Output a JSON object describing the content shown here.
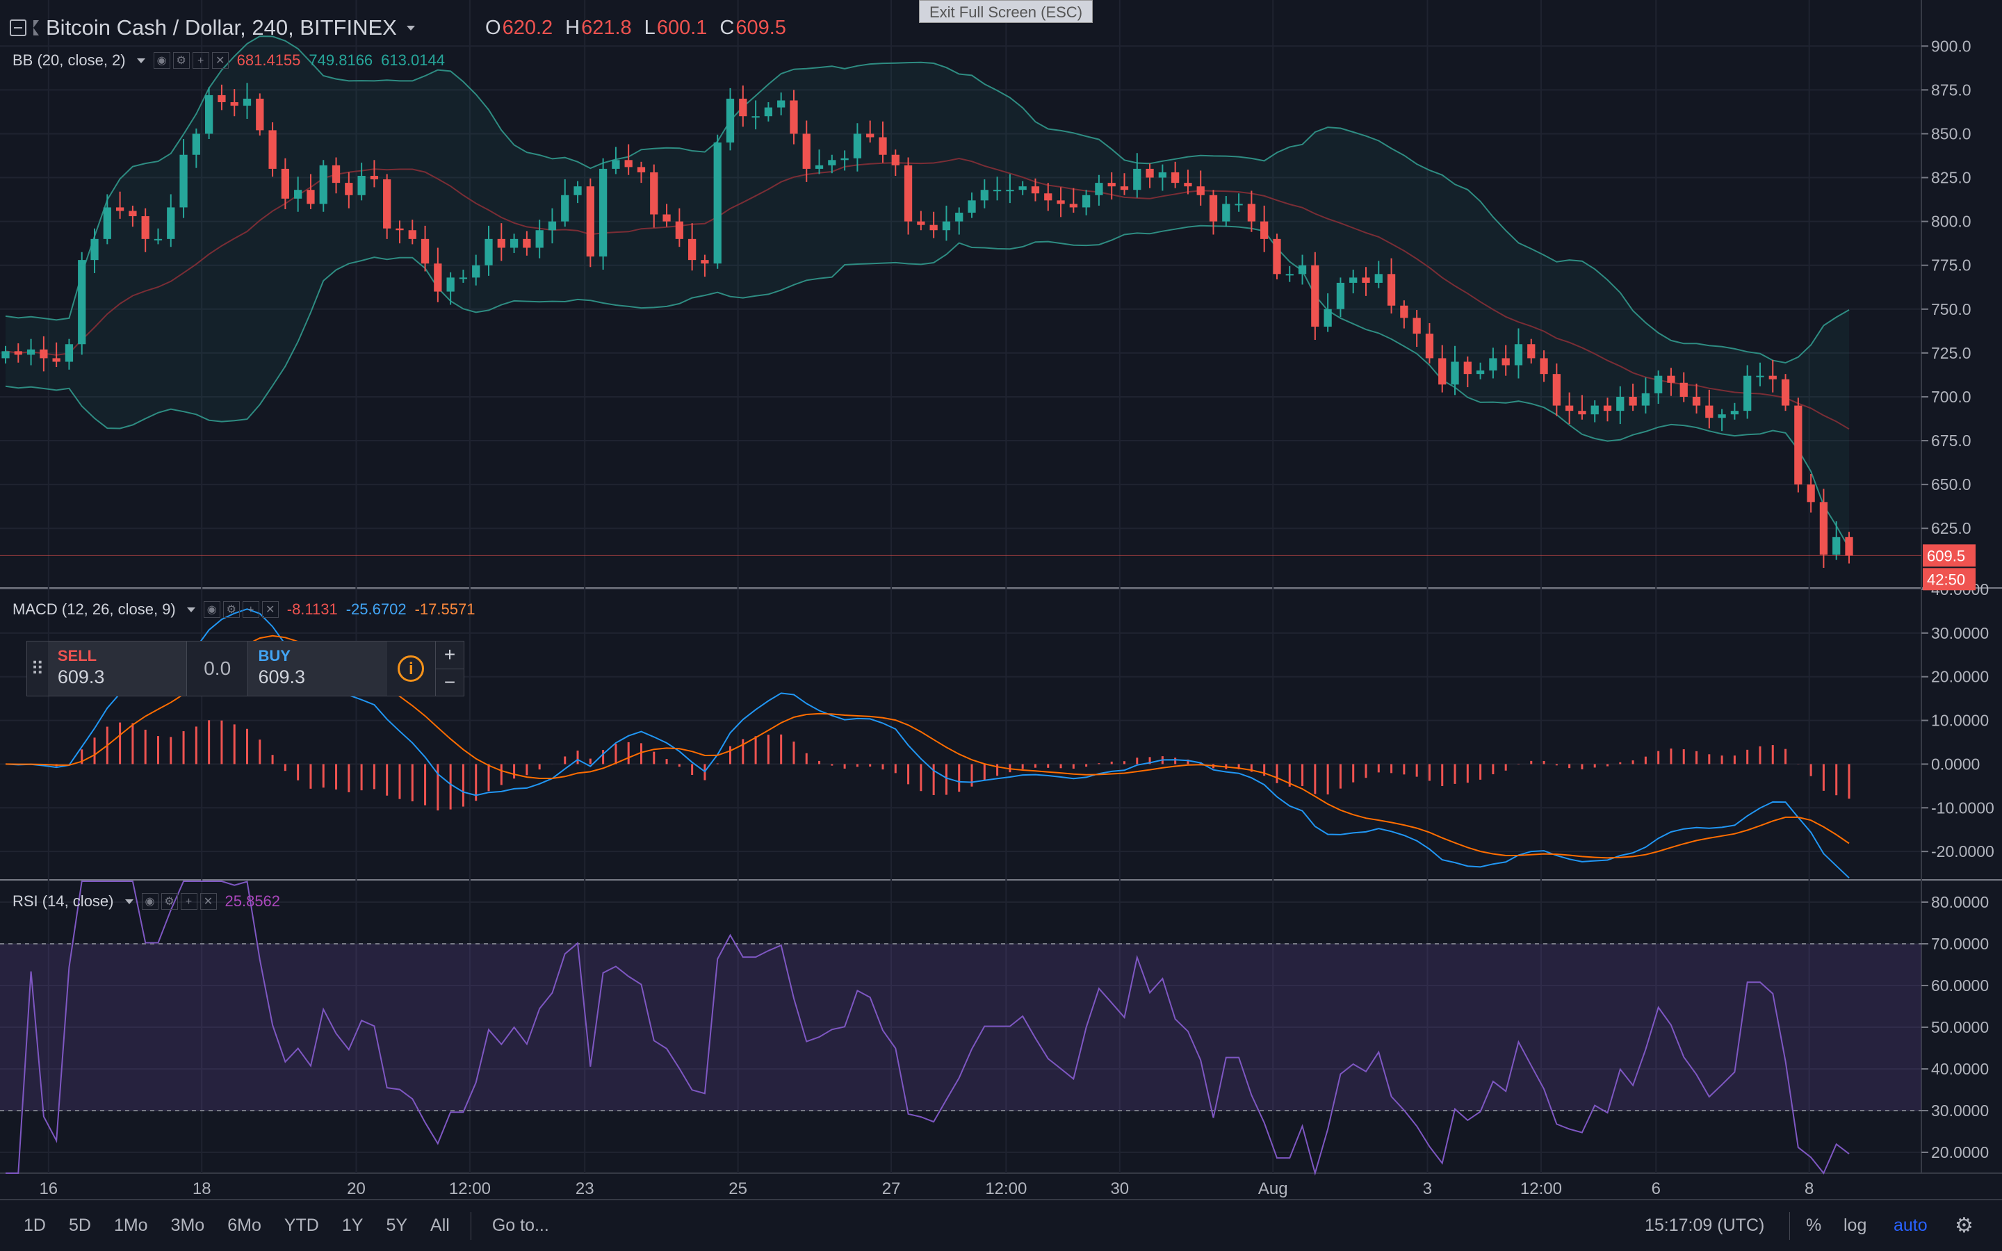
{
  "window": {
    "exit_fullscreen": "Exit Full Screen (ESC)"
  },
  "symbol": {
    "title": "Bitcoin Cash / Dollar, 240, BITFINEX"
  },
  "ohlc": {
    "o_label": "O",
    "o": "620.2",
    "h_label": "H",
    "h": "621.8",
    "l_label": "L",
    "l": "600.1",
    "c_label": "C",
    "c": "609.5"
  },
  "indicators": {
    "bb": {
      "name": "BB (20, close, 2)",
      "basis": "681.4155",
      "upper": "749.8166",
      "lower": "613.0144"
    },
    "macd": {
      "name": "MACD (12, 26, close, 9)",
      "hist": "-8.1131",
      "macd": "-25.6702",
      "signal": "-17.5571"
    },
    "rsi": {
      "name": "RSI (14, close)",
      "value": "25.8562"
    }
  },
  "trade_panel": {
    "sell_label": "SELL",
    "sell_price": "609.3",
    "spread": "0.0",
    "buy_label": "BUY",
    "buy_price": "609.3",
    "plus": "+",
    "minus": "−",
    "info": "i"
  },
  "price_badge": {
    "price": "609.5",
    "countdown": "42:50"
  },
  "toolbar": {
    "timeframes": [
      "1D",
      "5D",
      "1Mo",
      "3Mo",
      "6Mo",
      "YTD",
      "1Y",
      "5Y",
      "All"
    ],
    "goto": "Go to...",
    "time": "15:17:09 (UTC)",
    "percent": "%",
    "log": "log",
    "auto": "auto"
  },
  "colors": {
    "up": "#26a69a",
    "down": "#ef5350",
    "bb": "#2e8c82",
    "macd": "#2196f3",
    "signal": "#ff6d00",
    "rsi": "#7e57c2"
  },
  "chart_data": [
    {
      "type": "candlestick",
      "title": "Bitcoin Cash / Dollar, 240, BITFINEX",
      "y_ticks": [
        900,
        875,
        850,
        825,
        800,
        775,
        750,
        725,
        700,
        675,
        650,
        625
      ],
      "x_ticks": [
        "16",
        "18",
        "20",
        "12:00",
        "23",
        "25",
        "27",
        "12:00",
        "30",
        "Aug",
        "3",
        "12:00",
        "6",
        "8"
      ],
      "ylim": [
        591,
        912
      ],
      "closes": [
        726,
        724,
        727,
        722,
        720,
        730,
        778,
        790,
        808,
        806,
        803,
        790,
        790,
        808,
        838,
        850,
        872,
        868,
        866,
        870,
        852,
        830,
        813,
        818,
        810,
        832,
        822,
        815,
        826,
        824,
        796,
        795,
        790,
        776,
        760,
        768,
        768,
        775,
        790,
        785,
        790,
        785,
        795,
        800,
        815,
        820,
        780,
        830,
        835,
        831,
        828,
        804,
        800,
        790,
        778,
        776,
        845,
        870,
        860,
        860,
        865,
        869,
        850,
        830,
        832,
        835,
        836,
        850,
        848,
        838,
        832,
        800,
        798,
        795,
        800,
        805,
        812,
        818,
        818,
        818,
        820,
        816,
        812,
        810,
        808,
        815,
        822,
        820,
        818,
        830,
        825,
        828,
        822,
        820,
        815,
        800,
        810,
        810,
        800,
        790,
        770,
        770,
        775,
        740,
        750,
        765,
        768,
        765,
        770,
        752,
        745,
        736,
        722,
        707,
        720,
        713,
        715,
        722,
        718,
        730,
        722,
        713,
        695,
        692,
        690,
        695,
        692,
        700,
        695,
        702,
        712,
        708,
        700,
        695,
        688,
        690,
        692,
        712,
        712,
        710,
        695,
        650,
        640,
        610,
        620,
        609.5
      ],
      "bb_upper_range": [
        749.8,
        900
      ],
      "bb_lower_range": [
        613.0,
        760
      ]
    },
    {
      "type": "macd",
      "y_ticks": [
        40,
        30,
        20,
        10,
        0,
        -10,
        -20
      ],
      "ylim": [
        -26.5,
        40
      ],
      "last": {
        "hist": -8.1131,
        "macd": -25.6702,
        "signal": -17.5571
      }
    },
    {
      "type": "rsi",
      "y_ticks": [
        80,
        70,
        60,
        50,
        40,
        30,
        20
      ],
      "ylim": [
        15,
        85
      ],
      "bands": [
        30,
        70
      ],
      "last": 25.8562
    }
  ]
}
